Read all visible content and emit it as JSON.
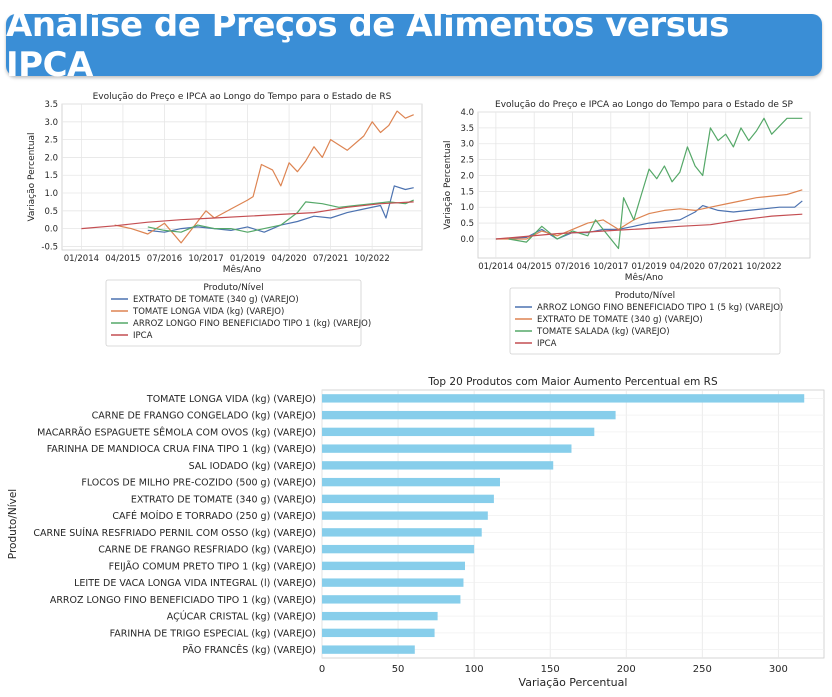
{
  "page": {
    "title": "Análise de Preços de Alimentos versus IPCA"
  },
  "chart_data": [
    {
      "type": "line",
      "title": "Evolução do Preço e IPCA ao Longo do Tempo para o Estado de RS",
      "xlabel": "Mês/Ano",
      "ylabel": "Variação Percentual",
      "x_ticks": [
        "01/2014",
        "04/2015",
        "07/2016",
        "10/2017",
        "01/2019",
        "04/2020",
        "07/2021",
        "10/2022"
      ],
      "xlim": [
        "2013-06",
        "2024-04"
      ],
      "ylim": [
        -0.6,
        3.5
      ],
      "y_ticks": [
        -0.5,
        0.0,
        0.5,
        1.0,
        1.5,
        2.0,
        2.5,
        3.0,
        3.5
      ],
      "legend_title": "Produto/Nível",
      "legend_position": "below",
      "grid": true,
      "series": [
        {
          "name": "EXTRATO DE TOMATE (340 g) (VAREJO)",
          "color": "#4c72b0",
          "points": [
            [
              "2016-01",
              -0.05
            ],
            [
              "2016-07",
              -0.1
            ],
            [
              "2017-01",
              0.0
            ],
            [
              "2017-07",
              0.05
            ],
            [
              "2018-01",
              0.0
            ],
            [
              "2018-07",
              -0.05
            ],
            [
              "2019-01",
              0.05
            ],
            [
              "2019-07",
              -0.1
            ],
            [
              "2020-01",
              0.1
            ],
            [
              "2020-07",
              0.2
            ],
            [
              "2021-01",
              0.35
            ],
            [
              "2021-07",
              0.3
            ],
            [
              "2022-01",
              0.45
            ],
            [
              "2022-07",
              0.55
            ],
            [
              "2023-01",
              0.65
            ],
            [
              "2023-03",
              0.3
            ],
            [
              "2023-06",
              1.2
            ],
            [
              "2023-10",
              1.1
            ],
            [
              "2024-01",
              1.15
            ]
          ]
        },
        {
          "name": "TOMATE LONGA VIDA (kg) (VAREJO)",
          "color": "#dd8452",
          "points": [
            [
              "2015-01",
              0.1
            ],
            [
              "2015-07",
              0.0
            ],
            [
              "2016-01",
              -0.15
            ],
            [
              "2016-07",
              0.15
            ],
            [
              "2017-01",
              -0.4
            ],
            [
              "2017-07",
              0.2
            ],
            [
              "2017-10",
              0.5
            ],
            [
              "2018-01",
              0.3
            ],
            [
              "2018-07",
              0.55
            ],
            [
              "2019-01",
              0.8
            ],
            [
              "2019-03",
              0.9
            ],
            [
              "2019-06",
              1.8
            ],
            [
              "2019-10",
              1.65
            ],
            [
              "2020-01",
              1.2
            ],
            [
              "2020-04",
              1.85
            ],
            [
              "2020-07",
              1.6
            ],
            [
              "2020-10",
              1.9
            ],
            [
              "2021-01",
              2.3
            ],
            [
              "2021-04",
              2.0
            ],
            [
              "2021-07",
              2.5
            ],
            [
              "2022-01",
              2.2
            ],
            [
              "2022-07",
              2.6
            ],
            [
              "2022-10",
              3.0
            ],
            [
              "2023-01",
              2.7
            ],
            [
              "2023-04",
              2.9
            ],
            [
              "2023-07",
              3.3
            ],
            [
              "2023-10",
              3.1
            ],
            [
              "2024-01",
              3.2
            ]
          ]
        },
        {
          "name": "ARROZ LONGO FINO BENEFICIADO TIPO 1 (kg) (VAREJO)",
          "color": "#55a868",
          "points": [
            [
              "2016-01",
              0.05
            ],
            [
              "2016-07",
              -0.05
            ],
            [
              "2017-01",
              -0.1
            ],
            [
              "2017-07",
              0.1
            ],
            [
              "2018-01",
              0.0
            ],
            [
              "2018-07",
              0.0
            ],
            [
              "2019-01",
              -0.1
            ],
            [
              "2019-07",
              0.0
            ],
            [
              "2020-01",
              0.1
            ],
            [
              "2020-07",
              0.45
            ],
            [
              "2020-10",
              0.75
            ],
            [
              "2021-04",
              0.7
            ],
            [
              "2021-10",
              0.6
            ],
            [
              "2022-04",
              0.65
            ],
            [
              "2022-10",
              0.7
            ],
            [
              "2023-04",
              0.75
            ],
            [
              "2023-10",
              0.7
            ],
            [
              "2024-01",
              0.8
            ]
          ]
        },
        {
          "name": "IPCA",
          "color": "#c44e52",
          "points": [
            [
              "2014-01",
              0.0
            ],
            [
              "2015-01",
              0.08
            ],
            [
              "2016-01",
              0.18
            ],
            [
              "2017-01",
              0.25
            ],
            [
              "2018-01",
              0.3
            ],
            [
              "2019-01",
              0.35
            ],
            [
              "2020-01",
              0.4
            ],
            [
              "2021-01",
              0.45
            ],
            [
              "2022-01",
              0.6
            ],
            [
              "2023-01",
              0.7
            ],
            [
              "2024-01",
              0.75
            ]
          ]
        }
      ]
    },
    {
      "type": "line",
      "title": "Evolução do Preço e IPCA ao Longo do Tempo para o Estado de SP",
      "xlabel": "Mês/Ano",
      "ylabel": "Variação Percentual",
      "x_ticks": [
        "01/2014",
        "04/2015",
        "07/2016",
        "10/2017",
        "01/2019",
        "04/2020",
        "07/2021",
        "10/2022"
      ],
      "xlim": [
        "2013-06",
        "2024-04"
      ],
      "ylim": [
        -0.6,
        4.0
      ],
      "y_ticks": [
        0.0,
        0.5,
        1.0,
        1.5,
        2.0,
        2.5,
        3.0,
        3.5,
        4.0
      ],
      "legend_title": "Produto/Nível",
      "legend_position": "below",
      "grid": true,
      "series": [
        {
          "name": "ARROZ LONGO FINO BENEFICIADO TIPO 1 (5 kg) (VAREJO)",
          "color": "#4c72b0",
          "points": [
            [
              "2014-01",
              0.0
            ],
            [
              "2015-01",
              0.05
            ],
            [
              "2015-07",
              0.3
            ],
            [
              "2016-01",
              0.0
            ],
            [
              "2016-07",
              0.2
            ],
            [
              "2017-01",
              0.2
            ],
            [
              "2017-07",
              0.3
            ],
            [
              "2018-01",
              0.3
            ],
            [
              "2018-07",
              0.4
            ],
            [
              "2019-01",
              0.5
            ],
            [
              "2019-07",
              0.55
            ],
            [
              "2020-01",
              0.6
            ],
            [
              "2020-07",
              0.85
            ],
            [
              "2020-10",
              1.05
            ],
            [
              "2021-04",
              0.9
            ],
            [
              "2021-10",
              0.85
            ],
            [
              "2022-04",
              0.9
            ],
            [
              "2022-10",
              0.95
            ],
            [
              "2023-04",
              1.0
            ],
            [
              "2023-10",
              1.0
            ],
            [
              "2024-01",
              1.2
            ]
          ]
        },
        {
          "name": "EXTRATO DE TOMATE (340 g) (VAREJO)",
          "color": "#dd8452",
          "points": [
            [
              "2014-01",
              0.0
            ],
            [
              "2015-01",
              0.0
            ],
            [
              "2015-07",
              0.25
            ],
            [
              "2016-01",
              0.1
            ],
            [
              "2016-07",
              0.3
            ],
            [
              "2017-01",
              0.5
            ],
            [
              "2017-07",
              0.6
            ],
            [
              "2018-01",
              0.3
            ],
            [
              "2018-07",
              0.6
            ],
            [
              "2019-01",
              0.8
            ],
            [
              "2019-07",
              0.9
            ],
            [
              "2020-01",
              0.95
            ],
            [
              "2020-07",
              0.9
            ],
            [
              "2021-01",
              1.0
            ],
            [
              "2021-07",
              1.1
            ],
            [
              "2022-01",
              1.2
            ],
            [
              "2022-07",
              1.3
            ],
            [
              "2023-01",
              1.35
            ],
            [
              "2023-07",
              1.4
            ],
            [
              "2024-01",
              1.55
            ]
          ]
        },
        {
          "name": "TOMATE SALADA (kg) (VAREJO)",
          "color": "#55a868",
          "points": [
            [
              "2014-06",
              0.0
            ],
            [
              "2015-01",
              -0.1
            ],
            [
              "2015-07",
              0.4
            ],
            [
              "2016-01",
              0.0
            ],
            [
              "2016-07",
              0.25
            ],
            [
              "2017-01",
              0.1
            ],
            [
              "2017-04",
              0.6
            ],
            [
              "2017-07",
              0.3
            ],
            [
              "2018-01",
              -0.3
            ],
            [
              "2018-03",
              1.3
            ],
            [
              "2018-07",
              0.6
            ],
            [
              "2018-10",
              1.4
            ],
            [
              "2019-01",
              2.2
            ],
            [
              "2019-04",
              1.9
            ],
            [
              "2019-07",
              2.3
            ],
            [
              "2019-10",
              1.8
            ],
            [
              "2020-01",
              2.1
            ],
            [
              "2020-04",
              2.9
            ],
            [
              "2020-07",
              2.3
            ],
            [
              "2020-10",
              2.0
            ],
            [
              "2021-01",
              3.5
            ],
            [
              "2021-04",
              3.1
            ],
            [
              "2021-07",
              3.3
            ],
            [
              "2021-10",
              2.9
            ],
            [
              "2022-01",
              3.5
            ],
            [
              "2022-04",
              3.1
            ],
            [
              "2022-07",
              3.4
            ],
            [
              "2022-10",
              3.8
            ],
            [
              "2023-01",
              3.3
            ],
            [
              "2023-07",
              3.8
            ],
            [
              "2024-01",
              3.8
            ]
          ]
        },
        {
          "name": "IPCA",
          "color": "#c44e52",
          "points": [
            [
              "2014-01",
              0.0
            ],
            [
              "2015-01",
              0.08
            ],
            [
              "2016-01",
              0.17
            ],
            [
              "2017-01",
              0.22
            ],
            [
              "2018-01",
              0.28
            ],
            [
              "2019-01",
              0.33
            ],
            [
              "2020-01",
              0.4
            ],
            [
              "2021-01",
              0.45
            ],
            [
              "2022-01",
              0.6
            ],
            [
              "2023-01",
              0.72
            ],
            [
              "2024-01",
              0.78
            ]
          ]
        }
      ]
    },
    {
      "type": "bar",
      "orientation": "horizontal",
      "title": "Top 20 Produtos com Maior Aumento Percentual em RS",
      "xlabel": "Variação Percentual",
      "ylabel": "Produto/Nível",
      "xlim": [
        0,
        330
      ],
      "x_ticks": [
        0,
        50,
        100,
        150,
        200,
        250,
        300
      ],
      "bar_color": "#87ceeb",
      "grid": true,
      "categories": [
        "TOMATE LONGA VIDA (kg) (VAREJO)",
        "CARNE DE FRANGO CONGELADO (kg) (VAREJO)",
        "MACARRÃO ESPAGUETE SÊMOLA COM OVOS (kg) (VAREJO)",
        "FARINHA DE MANDIOCA CRUA FINA TIPO 1 (kg) (VAREJO)",
        "SAL IODADO (kg) (VAREJO)",
        "FLOCOS DE MILHO PRE-COZIDO (500 g) (VAREJO)",
        "EXTRATO DE TOMATE (340 g) (VAREJO)",
        "CAFÉ MOÍDO E TORRADO (250 g) (VAREJO)",
        "CARNE SUÍNA RESFRIADO PERNIL COM OSSO (kg) (VAREJO)",
        "CARNE DE FRANGO RESFRIADO (kg) (VAREJO)",
        "FEIJÃO COMUM PRETO TIPO 1 (kg) (VAREJO)",
        "LEITE DE VACA LONGA VIDA INTEGRAL (l) (VAREJO)",
        "ARROZ LONGO FINO BENEFICIADO TIPO 1 (kg) (VAREJO)",
        "AÇÚCAR CRISTAL (kg) (VAREJO)",
        "FARINHA DE TRIGO ESPECIAL (kg) (VAREJO)",
        "PÃO FRANCÊS (kg) (VAREJO)"
      ],
      "values": [
        317,
        193,
        179,
        164,
        152,
        117,
        113,
        109,
        105,
        100,
        94,
        93,
        91,
        76,
        74,
        61
      ]
    }
  ]
}
